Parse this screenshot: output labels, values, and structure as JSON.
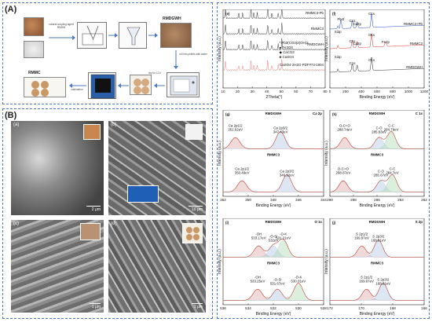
{
  "panels": {
    "A": "(A)",
    "B": "(B)"
  },
  "panel_A": {
    "step1_text": "natural coupling agent RMDW",
    "step2_text": "mix uniformly",
    "rmdgwh_label": "RMDGWH",
    "rmmc_label": "RMMC",
    "pellet_text": "roll into pellets with water",
    "dry_text": "dry for 12 h",
    "calc_text": "calcination"
  },
  "panel_B": {
    "tiles": [
      {
        "tag": "(a)",
        "scale": "2 μm"
      },
      {
        "tag": "(b)",
        "scale": "10 μm"
      },
      {
        "tag": "(c)",
        "scale": "1 μm"
      },
      {
        "tag": "(d)",
        "scale": "1 μm"
      }
    ]
  },
  "chart_data": [
    {
      "id": "e",
      "type": "line",
      "tag": "(e)",
      "xlabel": "2Theta(°)",
      "ylabel": "Intensity (a.u.)",
      "xlim": [
        10,
        80
      ],
      "xticks": [
        "10",
        "20",
        "30",
        "40",
        "50",
        "60",
        "70",
        "80"
      ],
      "series": [
        {
          "name": "RMMC3-Pb",
          "color": "#222222"
        },
        {
          "name": "RMMC3",
          "color": "#222222"
        },
        {
          "name": "RMDGWH",
          "color": "#222222"
        },
        {
          "name": "CaSO4·2H2O PDF#74-1904",
          "color": "#d9534f"
        }
      ],
      "legend": [
        {
          "symbol": "*",
          "text": "Pb3(CO3)2(OH)2",
          "color": "#d62728"
        },
        {
          "symbol": "●",
          "text": "Fe3O4",
          "color": "#1f3fbf"
        },
        {
          "symbol": "◆",
          "text": "CaCO3",
          "color": "#e6a800"
        },
        {
          "symbol": "♣",
          "text": "CaSO4",
          "color": "#2ca02c"
        }
      ]
    },
    {
      "id": "f",
      "type": "line",
      "tag": "(f)",
      "xlabel": "Binding Energy (eV)",
      "ylabel": "Intensity (a.u.)",
      "xlim": [
        0,
        1200
      ],
      "xticks": [
        "0",
        "200",
        "400",
        "600",
        "800",
        "1000",
        "1200"
      ],
      "series": [
        {
          "name": "RMMC3+Pb",
          "color": "#1f3fbf"
        },
        {
          "name": "RMMC3",
          "color": "#d62728"
        },
        {
          "name": "RMDGWH",
          "color": "#222222"
        }
      ],
      "annotations": [
        "Pb4f",
        "Si2p",
        "C1s",
        "Ca2p",
        "O1s",
        "C1s",
        "Ca2p",
        "O1s",
        "Si2p",
        "Fe2p",
        "C1s",
        "O1s"
      ]
    },
    {
      "id": "g",
      "type": "line",
      "title_left": "RMDGWH",
      "title_right": "Ca 2p",
      "sub_title": "RMMC3",
      "tag": "(g)",
      "xlabel": "Binding Energy (eV)",
      "ylabel": "Intensity (a.u.)",
      "xlim": [
        352,
        344
      ],
      "xticks": [
        "352",
        "350",
        "348",
        "346",
        "344"
      ],
      "peaks_top": [
        {
          "label": "Ca 2p1/2",
          "value": "351.02eV"
        },
        {
          "label": "Ca 2p3/2",
          "value": "347.43eV"
        }
      ],
      "peaks_bottom": [
        {
          "label": "Ca 2p1/2",
          "value": "350.49eV"
        },
        {
          "label": "Ca 2p3/2",
          "value": "346.92eV"
        }
      ]
    },
    {
      "id": "h",
      "type": "line",
      "title_left": "RMDGWH",
      "title_right": "C 1s",
      "sub_title": "RMMC3",
      "tag": "(h)",
      "xlabel": "Binding Energy (eV)",
      "ylabel": "Intensity (a.u.)",
      "xlim": [
        290,
        282
      ],
      "xticks": [
        "290",
        "288",
        "286",
        "284",
        "282"
      ],
      "peaks_top": [
        {
          "label": "O-C=O",
          "value": "288.74eV"
        },
        {
          "label": "C-O",
          "value": "285.83eV"
        },
        {
          "label": "C-C",
          "value": "284.79eV"
        }
      ],
      "peaks_bottom": [
        {
          "label": "O-C=O",
          "value": "288.87eV"
        },
        {
          "label": "C-O",
          "value": "285.67eV"
        },
        {
          "label": "C-C",
          "value": "284.7eV"
        }
      ]
    },
    {
      "id": "i",
      "type": "line",
      "title_left": "RMDGWH",
      "title_right": "O 1s",
      "sub_title": "RMMC3",
      "tag": "(i)",
      "xlabel": "Binding Energy (eV)",
      "ylabel": "Intensity (a.u.)",
      "xlim": [
        536,
        528
      ],
      "xticks": [
        "536",
        "534",
        "532",
        "530",
        "528"
      ],
      "peaks_top": [
        {
          "label": "-OH",
          "value": "533.17eV"
        },
        {
          "label": "-O-Si",
          "value": "532eV"
        },
        {
          "label": "-O-K",
          "value": "531.21eV"
        }
      ],
      "peaks_bottom": [
        {
          "label": "-OH",
          "value": "533.25eV"
        },
        {
          "label": "-O-Si",
          "value": "531.67eV"
        },
        {
          "label": "-O-K",
          "value": "530.01eV"
        }
      ]
    },
    {
      "id": "j",
      "type": "line",
      "title_left": "RMDGWH",
      "title_right": "S 2p",
      "sub_title": "RMMC3",
      "tag": "(j)",
      "xlabel": "Binding Energy (eV)",
      "ylabel": "Intensity (a.u.)",
      "xlim": [
        172,
        166
      ],
      "xticks": [
        "172",
        "170",
        "168",
        "166"
      ],
      "peaks_top": [
        {
          "label": "S 2p1/2",
          "value": "169.97eV"
        },
        {
          "label": "S 2p3/2",
          "value": "168.91eV"
        }
      ],
      "peaks_bottom": [
        {
          "label": "S 2p1/2",
          "value": "169.67eV"
        },
        {
          "label": "S 2p3/2",
          "value": "168.61eV"
        }
      ]
    }
  ]
}
